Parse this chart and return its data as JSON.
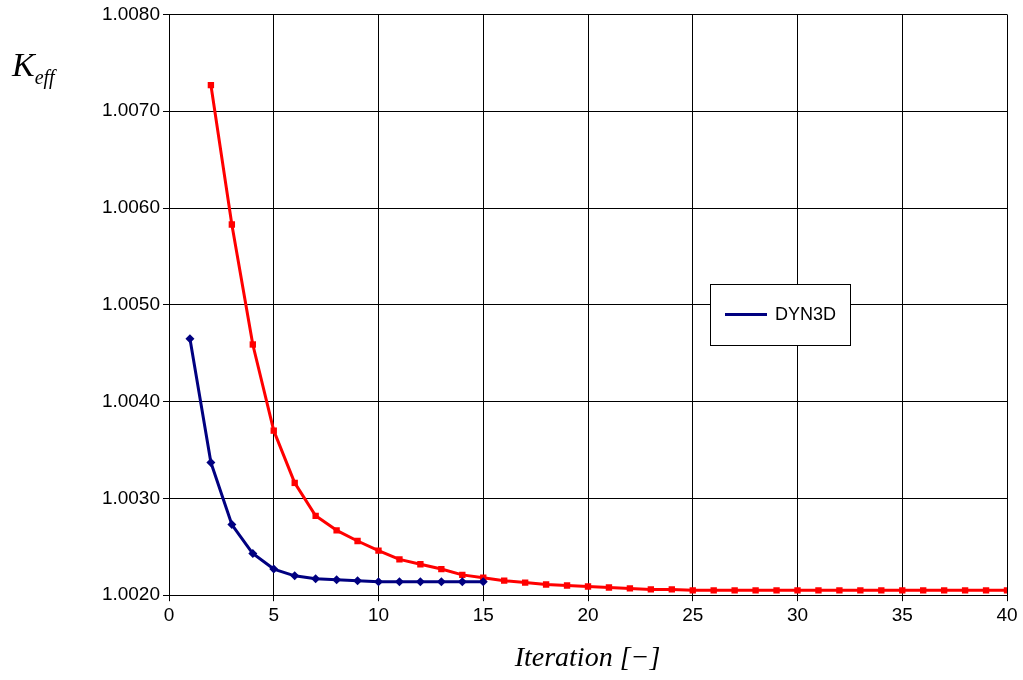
{
  "chart_data": {
    "type": "line",
    "xlabel": "Iteration [−]",
    "ylabel": "K$_{eff}$",
    "series": [
      {
        "name": "DYN3D",
        "color": "#000080",
        "marker": "diamond",
        "x": [
          1,
          2,
          3,
          4,
          5,
          6,
          7,
          8,
          9,
          10,
          11,
          12,
          13,
          14,
          15
        ],
        "values": [
          1.00465,
          1.00337,
          1.00273,
          1.00243,
          1.00227,
          1.0022,
          1.00217,
          1.00216,
          1.00215,
          1.00214,
          1.00214,
          1.00214,
          1.00214,
          1.00214,
          1.00214
        ]
      },
      {
        "color": "#ff0000",
        "marker": "square",
        "x": [
          2,
          3,
          4,
          5,
          6,
          7,
          8,
          9,
          10,
          11,
          12,
          13,
          14,
          15,
          16,
          17,
          18,
          19,
          20,
          21,
          22,
          23,
          24,
          25,
          26,
          27,
          28,
          29,
          30,
          31,
          32,
          33,
          34,
          35,
          36,
          37,
          38,
          39,
          40
        ],
        "values": [
          1.00727,
          1.00583,
          1.00459,
          1.0037,
          1.00316,
          1.00282,
          1.00267,
          1.00256,
          1.00246,
          1.00237,
          1.00232,
          1.00227,
          1.00221,
          1.00218,
          1.00215,
          1.00213,
          1.00211,
          1.0021,
          1.00209,
          1.00208,
          1.00207,
          1.00206,
          1.00206,
          1.00205,
          1.00205,
          1.00205,
          1.00205,
          1.00205,
          1.00205,
          1.00205,
          1.00205,
          1.00205,
          1.00205,
          1.00205,
          1.00205,
          1.00205,
          1.00205,
          1.00205,
          1.00205
        ]
      }
    ],
    "xlim": [
      0,
      40
    ],
    "xticks": [
      0,
      5,
      10,
      15,
      20,
      25,
      30,
      35,
      40
    ],
    "ylim": [
      1.002,
      1.008
    ],
    "yticks": [
      {
        "value": 1.002,
        "label": "1.0020"
      },
      {
        "value": 1.003,
        "label": "1.0030"
      },
      {
        "value": 1.004,
        "label": "1.0040"
      },
      {
        "value": 1.005,
        "label": "1.0050"
      },
      {
        "value": 1.006,
        "label": "1.0060"
      },
      {
        "value": 1.007,
        "label": "1.0070"
      },
      {
        "value": 1.008,
        "label": "1.0080"
      }
    ],
    "grid": true,
    "legend": "right",
    "line_style": "solid"
  }
}
